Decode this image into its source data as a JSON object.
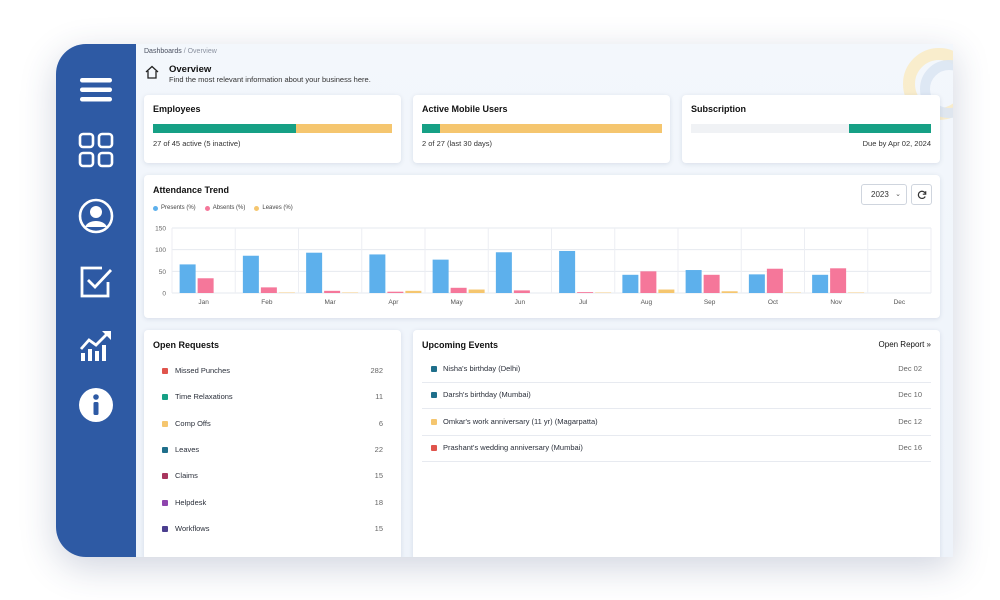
{
  "colors": {
    "sidebar": "#2e5aa4",
    "teal": "#16a085",
    "amber": "#f5c66f",
    "track": "#f0f2f5",
    "presents": "#5db0ec",
    "absents": "#f5779a",
    "leaves": "#f5c66f"
  },
  "sidebar": {
    "icons": [
      "menu-icon",
      "dashboard-grid-icon",
      "user-profile-icon",
      "tasks-check-icon",
      "analytics-chart-icon",
      "info-icon"
    ]
  },
  "breadcrumb": {
    "root": "Dashboards",
    "separator": "/",
    "current": "Overview"
  },
  "header": {
    "title": "Overview",
    "subtitle": "Find the most relevant information about your business here."
  },
  "employees": {
    "title": "Employees",
    "note": "27 of 45 active (5 inactive)",
    "active": 27,
    "total": 45
  },
  "mobile_users": {
    "title": "Active Mobile Users",
    "note": "2 of 27 (last 30 days)",
    "active": 2,
    "total": 27
  },
  "subscription": {
    "title": "Subscription",
    "note": "Due by Apr 02, 2024",
    "progress_pct": 34
  },
  "attendance": {
    "title": "Attendance Trend",
    "year": "2023",
    "year_caret": "⌄"
  },
  "chart_data": {
    "type": "bar",
    "title": "Attendance Trend",
    "categories": [
      "Jan",
      "Feb",
      "Mar",
      "Apr",
      "May",
      "Jun",
      "Jul",
      "Aug",
      "Sep",
      "Oct",
      "Nov",
      "Dec"
    ],
    "series": [
      {
        "name": "Presents (%)",
        "color": "#5db0ec",
        "values": [
          66,
          86,
          93,
          89,
          77,
          94,
          97,
          42,
          53,
          43,
          42,
          0
        ]
      },
      {
        "name": "Absents (%)",
        "color": "#f5779a",
        "values": [
          34,
          13,
          5,
          3,
          12,
          6,
          2,
          50,
          42,
          56,
          57,
          0
        ]
      },
      {
        "name": "Leaves (%)",
        "color": "#f5c66f",
        "values": [
          0,
          1,
          1,
          5,
          8,
          0,
          1,
          8,
          4,
          1,
          1,
          0
        ]
      }
    ],
    "ylim": [
      0,
      150
    ],
    "yticks": [
      0,
      50,
      100,
      150
    ],
    "xlabel": "",
    "ylabel": "",
    "grid": true,
    "legend": "top-left"
  },
  "open_requests": {
    "title": "Open Requests",
    "items": [
      {
        "label": "Missed Punches",
        "count": "282",
        "color": "#e0544c"
      },
      {
        "label": "Time Relaxations",
        "count": "11",
        "color": "#16a085"
      },
      {
        "label": "Comp Offs",
        "count": "6",
        "color": "#f5c66f"
      },
      {
        "label": "Leaves",
        "count": "22",
        "color": "#1f6f8b"
      },
      {
        "label": "Claims",
        "count": "15",
        "color": "#a8365e"
      },
      {
        "label": "Helpdesk",
        "count": "18",
        "color": "#8e44ad"
      },
      {
        "label": "Workflows",
        "count": "15",
        "color": "#4b3f8f"
      }
    ]
  },
  "upcoming_events": {
    "title": "Upcoming Events",
    "open_report": "Open Report »",
    "items": [
      {
        "label": "Nisha's birthday (Delhi)",
        "date": "Dec 02",
        "color": "#1f6f8b"
      },
      {
        "label": "Darsh's birthday (Mumbai)",
        "date": "Dec 10",
        "color": "#1f6f8b"
      },
      {
        "label": "Omkar's work anniversary (11 yr) (Magarpatta)",
        "date": "Dec 12",
        "color": "#f5c66f"
      },
      {
        "label": "Prashant's wedding anniversary (Mumbai)",
        "date": "Dec 16",
        "color": "#e0544c"
      }
    ]
  }
}
